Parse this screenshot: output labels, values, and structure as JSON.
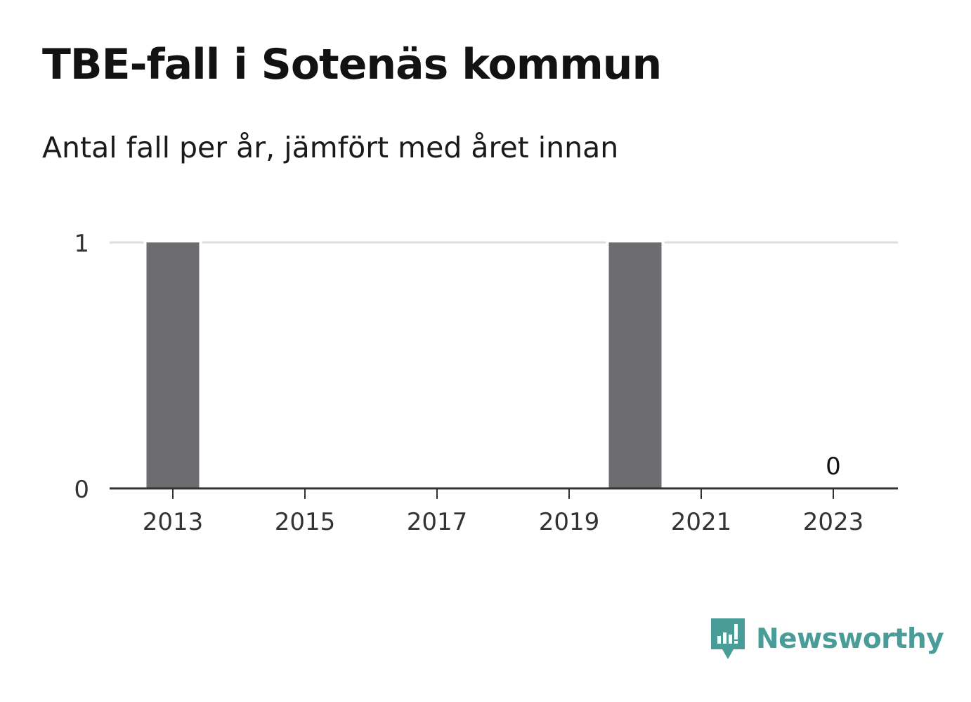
{
  "header": {
    "title": "TBE-fall i Sotenäs kommun",
    "subtitle": "Antal fall per år, jämfört med året innan"
  },
  "brand": {
    "name": "Newsworthy",
    "logo_icon": "newsworthy-logo-icon",
    "color": "#4a9c98"
  },
  "colors": {
    "bar": "#6d6c70",
    "grid": "#dddddd",
    "axis": "#333333",
    "text": "#333333"
  },
  "chart_data": {
    "type": "bar",
    "title": "TBE-fall i Sotenäs kommun",
    "subtitle": "Antal fall per år, jämfört med året innan",
    "categories": [
      2013,
      2014,
      2015,
      2016,
      2017,
      2018,
      2019,
      2020,
      2021,
      2022,
      2023
    ],
    "values": [
      1,
      0,
      0,
      0,
      0,
      0,
      0,
      1,
      0,
      0,
      0
    ],
    "x_tick_labels": [
      "2013",
      "2015",
      "2017",
      "2019",
      "2021",
      "2023"
    ],
    "y_tick_labels": [
      "0",
      "1"
    ],
    "ylim": [
      0,
      1
    ],
    "xlabel": "",
    "ylabel": "",
    "grid": true,
    "data_labels": [
      {
        "category": 2023,
        "text": "0"
      }
    ]
  }
}
